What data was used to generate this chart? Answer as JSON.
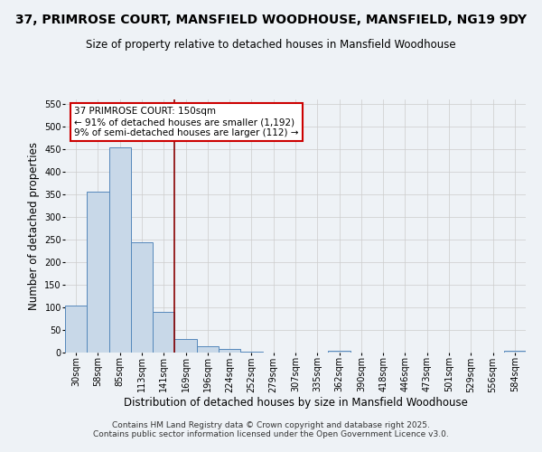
{
  "title": "37, PRIMROSE COURT, MANSFIELD WOODHOUSE, MANSFIELD, NG19 9DY",
  "subtitle": "Size of property relative to detached houses in Mansfield Woodhouse",
  "xlabel": "Distribution of detached houses by size in Mansfield Woodhouse",
  "ylabel": "Number of detached properties",
  "footer_line1": "Contains HM Land Registry data © Crown copyright and database right 2025.",
  "footer_line2": "Contains public sector information licensed under the Open Government Licence v3.0.",
  "bar_labels": [
    "30sqm",
    "58sqm",
    "85sqm",
    "113sqm",
    "141sqm",
    "169sqm",
    "196sqm",
    "224sqm",
    "252sqm",
    "279sqm",
    "307sqm",
    "335sqm",
    "362sqm",
    "390sqm",
    "418sqm",
    "446sqm",
    "473sqm",
    "501sqm",
    "529sqm",
    "556sqm",
    "584sqm"
  ],
  "bar_values": [
    104,
    357,
    455,
    245,
    90,
    31,
    14,
    8,
    3,
    1,
    0,
    0,
    4,
    0,
    0,
    0,
    0,
    0,
    0,
    0,
    4
  ],
  "bar_color": "#c8d8e8",
  "bar_edge_color": "#5588bb",
  "vline_color": "#880000",
  "vline_pos": 4.5,
  "ylim": [
    0,
    560
  ],
  "yticks": [
    0,
    50,
    100,
    150,
    200,
    250,
    300,
    350,
    400,
    450,
    500,
    550
  ],
  "annotation_title": "37 PRIMROSE COURT: 150sqm",
  "annotation_line1": "← 91% of detached houses are smaller (1,192)",
  "annotation_line2": "9% of semi-detached houses are larger (112) →",
  "annotation_box_color": "#ffffff",
  "annotation_box_edge": "#cc0000",
  "background_color": "#eef2f6",
  "plot_bg_color": "#eef2f6",
  "grid_color": "#cccccc",
  "title_fontsize": 10,
  "subtitle_fontsize": 8.5,
  "axis_label_fontsize": 8.5,
  "tick_fontsize": 7,
  "annotation_fontsize": 7.5,
  "footer_fontsize": 6.5
}
